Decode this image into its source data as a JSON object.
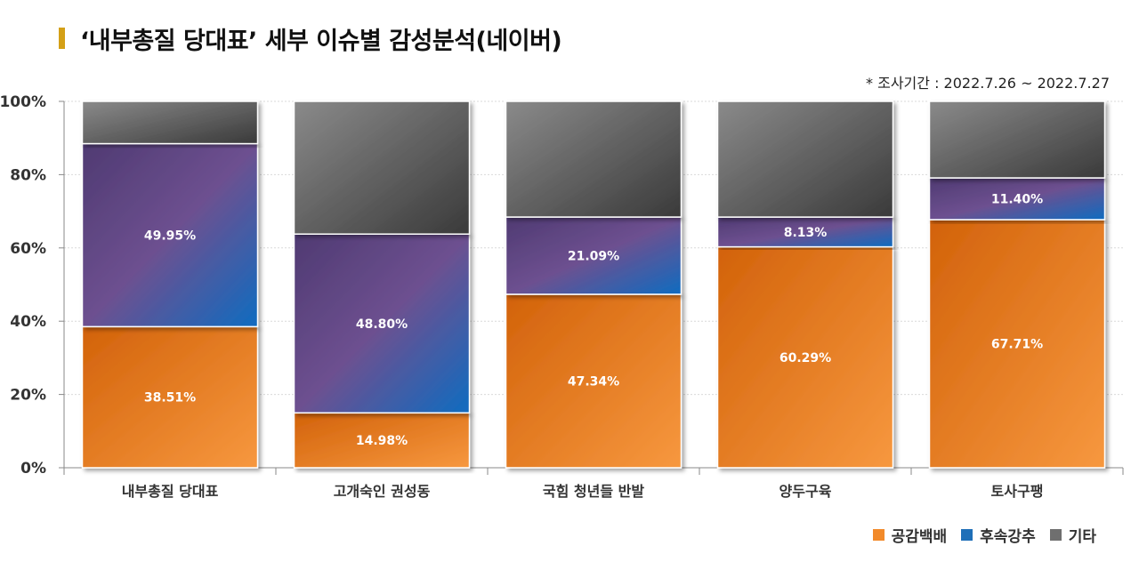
{
  "header": {
    "title": "‘내부총질 당대표’ 세부 이슈별 감성분석(네이버)",
    "subtitle": "* 조사기간 : 2022.7.26 ~ 2022.7.27",
    "accent_color": "#d4a017"
  },
  "chart_data": {
    "type": "bar",
    "stacked": true,
    "percent_stacked": true,
    "categories": [
      "내부총질 당대표",
      "고개숙인 권성동",
      "국힘 청년들 반발",
      "양두구육",
      "토사구팽"
    ],
    "series": [
      {
        "name": "공감백배",
        "values": [
          38.51,
          14.98,
          47.34,
          60.29,
          67.71
        ],
        "labels": [
          "38.51%",
          "14.98%",
          "47.34%",
          "60.29%",
          "67.71%"
        ],
        "color": "#f28a2a"
      },
      {
        "name": "후속강추",
        "values": [
          49.95,
          48.8,
          21.09,
          8.13,
          11.4
        ],
        "labels": [
          "49.95%",
          "48.80%",
          "21.09%",
          "8.13%",
          "11.40%"
        ],
        "color": "#1f6fb8"
      },
      {
        "name": "기타",
        "values": [
          11.54,
          36.22,
          31.57,
          31.58,
          20.89
        ],
        "labels": [],
        "color": "#6f6f6f"
      }
    ],
    "yticks": [
      "0%",
      "20%",
      "40%",
      "60%",
      "80%",
      "100%"
    ],
    "ylim": [
      0,
      100
    ],
    "grid": true,
    "legend_position": "bottom-right"
  }
}
